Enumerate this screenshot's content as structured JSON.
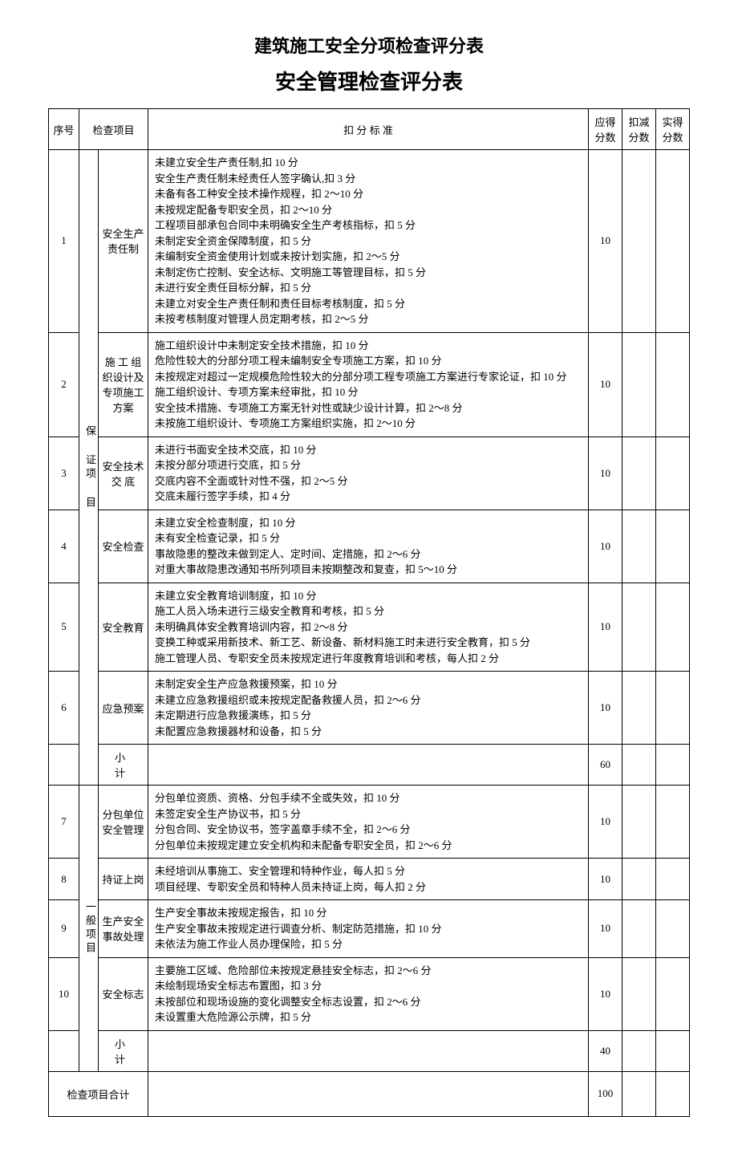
{
  "title1": "建筑施工安全分项检查评分表",
  "title2": "安全管理检查评分表",
  "headers": {
    "seq": "序号",
    "checkItem": "检查项目",
    "criteria": "扣 分 标 准",
    "should": "应得分数",
    "deduct": "扣减分数",
    "actual": "实得分数"
  },
  "category1": "保 证项 目",
  "category2": "一般项目",
  "rows": [
    {
      "seq": "1",
      "item": "安全生产责任制",
      "criteria": [
        "未建立安全生产责任制,扣 10 分",
        "安全生产责任制未经责任人签字确认,扣 3 分",
        "未备有各工种安全技术操作规程，扣 2～10 分",
        "未按规定配备专职安全员，扣 2～10 分",
        "工程项目部承包合同中未明确安全生产考核指标，扣 5 分",
        "未制定安全资金保障制度，扣 5 分",
        "未编制安全资金使用计划或未按计划实施，扣 2～5 分",
        "未制定伤亡控制、安全达标、文明施工等管理目标，扣 5 分",
        "未进行安全责任目标分解，扣 5 分",
        "未建立对安全生产责任制和责任目标考核制度，扣 5 分",
        "未按考核制度对管理人员定期考核，扣 2～5 分"
      ],
      "score": "10"
    },
    {
      "seq": "2",
      "item": "施 工 组织设计及专项施工方案",
      "criteria": [
        "施工组织设计中未制定安全技术措施，扣 10 分",
        "危险性较大的分部分项工程未编制安全专项施工方案，扣 10 分",
        "未按规定对超过一定规模危险性较大的分部分项工程专项施工方案进行专家论证，扣 10 分",
        "施工组织设计、专项方案未经审批，扣 10 分",
        "安全技术措施、专项施工方案无针对性或缺少设计计算，扣 2～8 分",
        "未按施工组织设计、专项施工方案组织实施，扣 2～10 分"
      ],
      "score": "10"
    },
    {
      "seq": "3",
      "item": "安全技术交 底",
      "criteria": [
        "未进行书面安全技术交底，扣 10 分",
        "未按分部分项进行交底，扣 5 分",
        "交底内容不全面或针对性不强，扣 2～5 分",
        "交底未履行签字手续，扣 4 分"
      ],
      "score": "10"
    },
    {
      "seq": "4",
      "item": "安全检查",
      "criteria": [
        "未建立安全检查制度，扣 10 分",
        "未有安全检查记录，扣 5 分",
        "事故隐患的整改未做到定人、定时间、定措施，扣 2～6 分",
        "对重大事故隐患改通知书所列项目未按期整改和复查，扣 5～10 分"
      ],
      "score": "10"
    },
    {
      "seq": "5",
      "item": "安全教育",
      "criteria": [
        "未建立安全教育培训制度，扣 10 分",
        "施工人员入场未进行三级安全教育和考核，扣 5 分",
        "未明确具体安全教育培训内容，扣 2～8 分",
        "变换工种或采用新技术、新工艺、新设备、新材料施工时未进行安全教育，扣 5 分",
        "施工管理人员、专职安全员未按规定进行年度教育培训和考核，每人扣 2 分"
      ],
      "score": "10"
    },
    {
      "seq": "6",
      "item": "应急预案",
      "criteria": [
        "未制定安全生产应急救援预案，扣 10 分",
        "未建立应急救援组织或未按规定配备救援人员，扣 2～6 分",
        "未定期进行应急救援演练，扣 5 分",
        "未配置应急救援器材和设备，扣 5 分"
      ],
      "score": "10"
    }
  ],
  "subtotal1": {
    "label": "小  计",
    "score": "60"
  },
  "rows2": [
    {
      "seq": "7",
      "item": "分包单位安全管理",
      "criteria": [
        "分包单位资质、资格、分包手续不全或失效，扣 10 分",
        "未签定安全生产协议书，扣 5 分",
        "分包合同、安全协议书，签字盖章手续不全，扣 2～6 分",
        "分包单位未按规定建立安全机构和未配备专职安全员，扣 2～6 分"
      ],
      "score": "10"
    },
    {
      "seq": "8",
      "item": "持证上岗",
      "criteria": [
        "未经培训从事施工、安全管理和特种作业，每人扣 5 分",
        "项目经理、专职安全员和特种人员未持证上岗，每人扣 2 分"
      ],
      "score": "10"
    },
    {
      "seq": "9",
      "item": "生产安全事故处理",
      "criteria": [
        "生产安全事故未按规定报告，扣 10 分",
        "生产安全事故未按规定进行调查分析、制定防范措施，扣 10 分",
        "未依法为施工作业人员办理保险，扣 5 分"
      ],
      "score": "10"
    },
    {
      "seq": "10",
      "item": "安全标志",
      "criteria": [
        "主要施工区域、危险部位未按规定悬挂安全标志，扣 2～6 分",
        "未绘制现场安全标志布置图，扣 3 分",
        "未按部位和现场设施的变化调整安全标志设置，扣 2～6 分",
        "未设置重大危险源公示牌，扣 5 分"
      ],
      "score": "10"
    }
  ],
  "subtotal2": {
    "label": "小  计",
    "score": "40"
  },
  "total": {
    "label": "检查项目合计",
    "score": "100"
  }
}
